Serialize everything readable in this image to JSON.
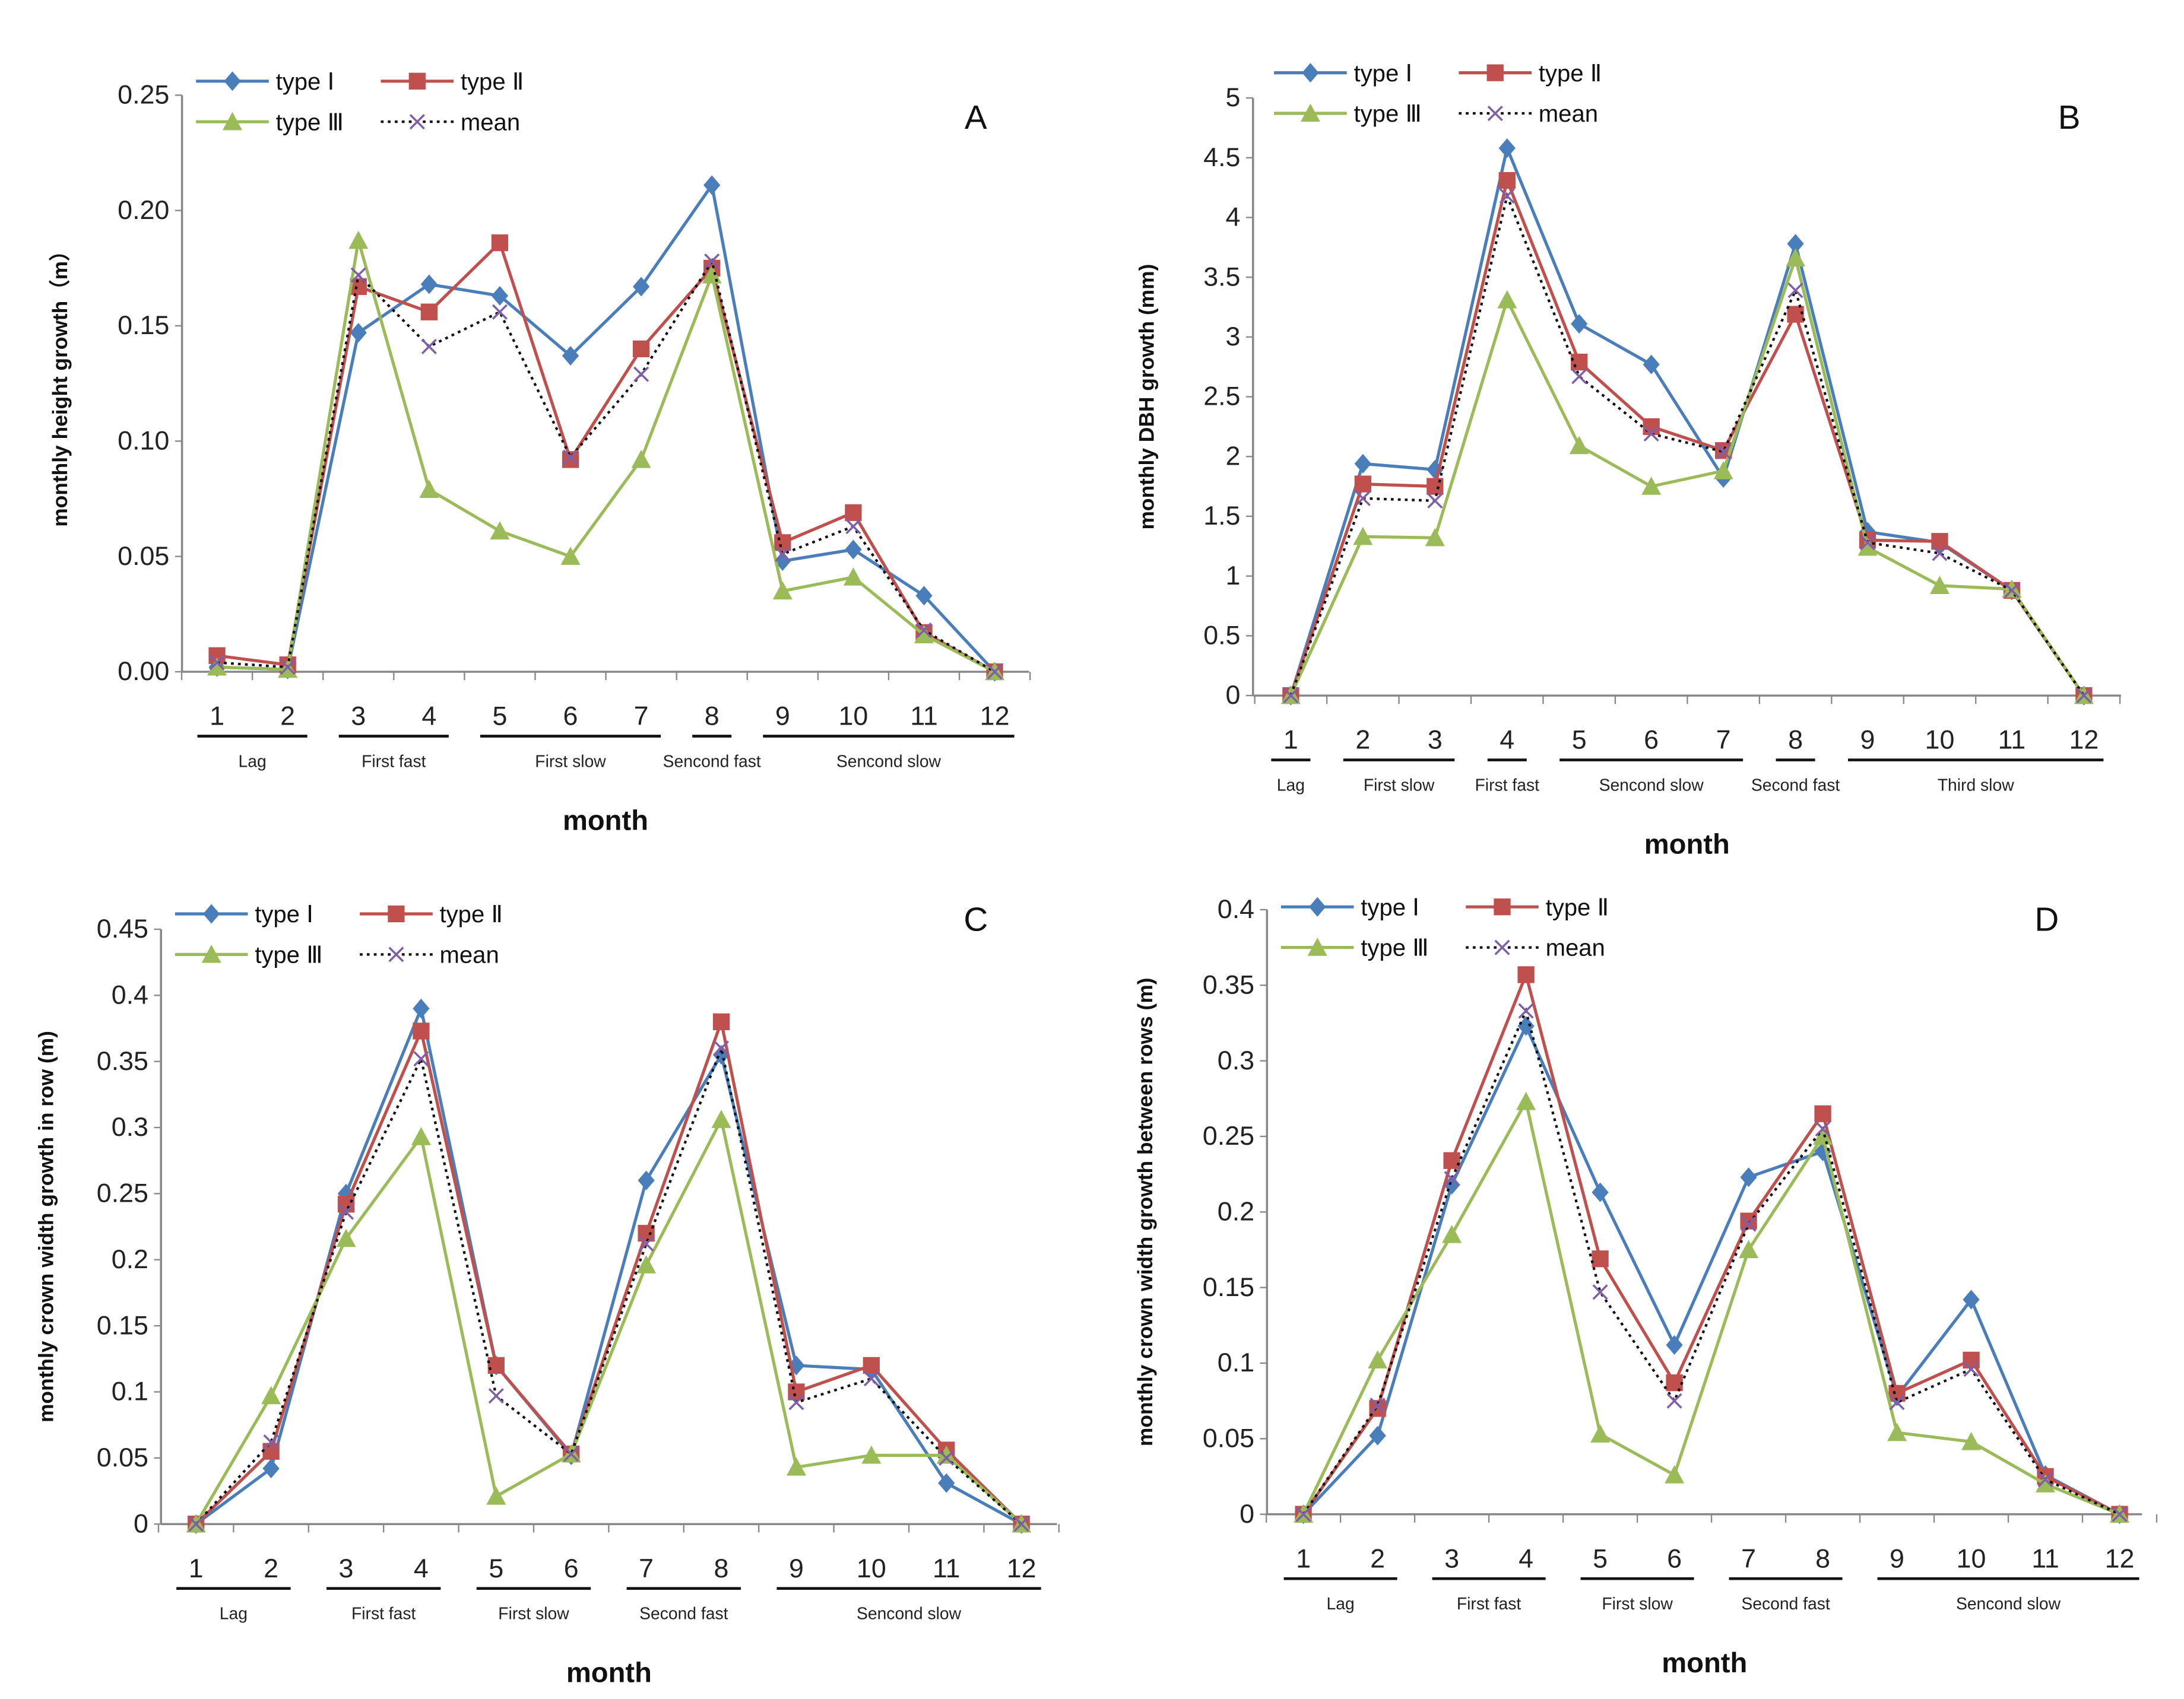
{
  "colors": {
    "type1": "#4a7ebb",
    "type2": "#c0504d",
    "type3": "#9bbb59",
    "mean": "#7f5fa8",
    "axis": "#888888"
  },
  "legend": [
    "type Ⅰ",
    "type Ⅱ",
    "type Ⅲ",
    "mean"
  ],
  "chart_data": [
    {
      "type": "line",
      "panel": "A",
      "xlabel": "month",
      "ylabel": "monthly height growth（m）",
      "x": [
        "1",
        "2",
        "3",
        "4",
        "5",
        "6",
        "7",
        "8",
        "9",
        "10",
        "11",
        "12"
      ],
      "ylim": [
        0,
        0.25
      ],
      "yticks": [
        "0.00",
        "0.05",
        "0.10",
        "0.15",
        "0.20",
        "0.25"
      ],
      "stages": [
        {
          "label": "Lag",
          "from": 1,
          "to": 2
        },
        {
          "label": "First fast",
          "from": 3,
          "to": 4
        },
        {
          "label": "First slow",
          "from": 5,
          "to": 7
        },
        {
          "label": "Sencond fast",
          "from": 8,
          "to": 8
        },
        {
          "label": "Sencond slow",
          "from": 9,
          "to": 12
        }
      ],
      "series": [
        {
          "name": "type Ⅰ",
          "values": [
            0.002,
            0.001,
            0.147,
            0.168,
            0.163,
            0.137,
            0.167,
            0.211,
            0.048,
            0.053,
            0.033,
            0
          ]
        },
        {
          "name": "type Ⅱ",
          "values": [
            0.007,
            0.003,
            0.167,
            0.156,
            0.186,
            0.092,
            0.14,
            0.175,
            0.056,
            0.069,
            0.017,
            0
          ]
        },
        {
          "name": "type Ⅲ",
          "values": [
            0.002,
            0.001,
            0.187,
            0.079,
            0.061,
            0.05,
            0.092,
            0.172,
            0.035,
            0.041,
            0.016,
            0
          ]
        },
        {
          "name": "mean",
          "values": [
            0.004,
            0.002,
            0.172,
            0.141,
            0.156,
            0.093,
            0.129,
            0.178,
            0.051,
            0.063,
            0.018,
            0
          ]
        }
      ]
    },
    {
      "type": "line",
      "panel": "B",
      "xlabel": "month",
      "ylabel": "monthly DBH growth (mm)",
      "x": [
        "1",
        "2",
        "3",
        "4",
        "5",
        "6",
        "7",
        "8",
        "9",
        "10",
        "11",
        "12"
      ],
      "ylim": [
        0,
        5
      ],
      "yticks": [
        "0",
        "0.5",
        "1",
        "1.5",
        "2",
        "2.5",
        "3",
        "3.5",
        "4",
        "4.5",
        "5"
      ],
      "stages": [
        {
          "label": "Lag",
          "from": 1,
          "to": 1
        },
        {
          "label": "First slow",
          "from": 2,
          "to": 3
        },
        {
          "label": "First fast",
          "from": 4,
          "to": 4
        },
        {
          "label": "Sencond slow",
          "from": 5,
          "to": 7
        },
        {
          "label": "Second fast",
          "from": 8,
          "to": 8
        },
        {
          "label": "Third slow",
          "from": 9,
          "to": 12
        }
      ],
      "series": [
        {
          "name": "type Ⅰ",
          "values": [
            0,
            1.94,
            1.89,
            4.58,
            3.11,
            2.77,
            1.82,
            3.78,
            1.37,
            1.28,
            0.88,
            0
          ]
        },
        {
          "name": "type Ⅱ",
          "values": [
            0,
            1.77,
            1.75,
            4.31,
            2.79,
            2.25,
            2.05,
            3.19,
            1.3,
            1.29,
            0.88,
            0
          ]
        },
        {
          "name": "type Ⅲ",
          "values": [
            0,
            1.33,
            1.32,
            3.31,
            2.09,
            1.75,
            1.88,
            3.66,
            1.24,
            0.92,
            0.89,
            0
          ]
        },
        {
          "name": "mean",
          "values": [
            0,
            1.65,
            1.63,
            4.18,
            2.67,
            2.19,
            2.04,
            3.39,
            1.28,
            1.19,
            0.88,
            0
          ]
        }
      ]
    },
    {
      "type": "line",
      "panel": "C",
      "xlabel": "month",
      "ylabel": "monthly crown width growth in row (m)",
      "x": [
        "1",
        "2",
        "3",
        "4",
        "5",
        "6",
        "7",
        "8",
        "9",
        "10",
        "11",
        "12"
      ],
      "ylim": [
        0,
        0.45
      ],
      "yticks": [
        "0",
        "0.05",
        "0.1",
        "0.15",
        "0.2",
        "0.25",
        "0.3",
        "0.35",
        "0.4",
        "0.45"
      ],
      "stages": [
        {
          "label": "Lag",
          "from": 1,
          "to": 2
        },
        {
          "label": "First fast",
          "from": 3,
          "to": 4
        },
        {
          "label": "First slow",
          "from": 5,
          "to": 6
        },
        {
          "label": "Second fast",
          "from": 7,
          "to": 8
        },
        {
          "label": "Sencond slow",
          "from": 9,
          "to": 12
        }
      ],
      "series": [
        {
          "name": "type Ⅰ",
          "values": [
            0,
            0.042,
            0.25,
            0.39,
            0.12,
            0.052,
            0.26,
            0.355,
            0.12,
            0.117,
            0.031,
            0
          ]
        },
        {
          "name": "type Ⅱ",
          "values": [
            0,
            0.055,
            0.242,
            0.373,
            0.12,
            0.053,
            0.22,
            0.38,
            0.1,
            0.12,
            0.056,
            0
          ]
        },
        {
          "name": "type Ⅲ",
          "values": [
            0,
            0.097,
            0.216,
            0.293,
            0.021,
            0.053,
            0.196,
            0.306,
            0.043,
            0.052,
            0.052,
            0
          ]
        },
        {
          "name": "mean",
          "values": [
            0,
            0.062,
            0.236,
            0.352,
            0.097,
            0.053,
            0.212,
            0.36,
            0.092,
            0.11,
            0.05,
            0
          ]
        }
      ]
    },
    {
      "type": "line",
      "panel": "D",
      "xlabel": "month",
      "ylabel": "monthly crown width growth between rows (m)",
      "x": [
        "1",
        "2",
        "3",
        "4",
        "5",
        "6",
        "7",
        "8",
        "9",
        "10",
        "11",
        "12"
      ],
      "ylim": [
        0,
        0.4
      ],
      "yticks": [
        "0",
        "0.05",
        "0.1",
        "0.15",
        "0.2",
        "0.25",
        "0.3",
        "0.35",
        "0.4"
      ],
      "stages": [
        {
          "label": "Lag",
          "from": 1,
          "to": 2
        },
        {
          "label": "First fast",
          "from": 3,
          "to": 4
        },
        {
          "label": "First slow",
          "from": 5,
          "to": 6
        },
        {
          "label": "Second fast",
          "from": 7,
          "to": 8
        },
        {
          "label": "Sencond slow",
          "from": 9,
          "to": 12
        }
      ],
      "series": [
        {
          "name": "type Ⅰ",
          "values": [
            0,
            0.052,
            0.218,
            0.323,
            0.213,
            0.112,
            0.223,
            0.24,
            0.078,
            0.142,
            0.026,
            0
          ]
        },
        {
          "name": "type Ⅱ",
          "values": [
            0,
            0.07,
            0.234,
            0.357,
            0.169,
            0.087,
            0.194,
            0.265,
            0.08,
            0.102,
            0.025,
            0
          ]
        },
        {
          "name": "type Ⅲ",
          "values": [
            0,
            0.102,
            0.185,
            0.273,
            0.053,
            0.026,
            0.175,
            0.25,
            0.054,
            0.048,
            0.02,
            0
          ]
        },
        {
          "name": "mean",
          "values": [
            0,
            0.072,
            0.222,
            0.333,
            0.147,
            0.075,
            0.192,
            0.255,
            0.074,
            0.096,
            0.023,
            0
          ]
        }
      ]
    }
  ]
}
